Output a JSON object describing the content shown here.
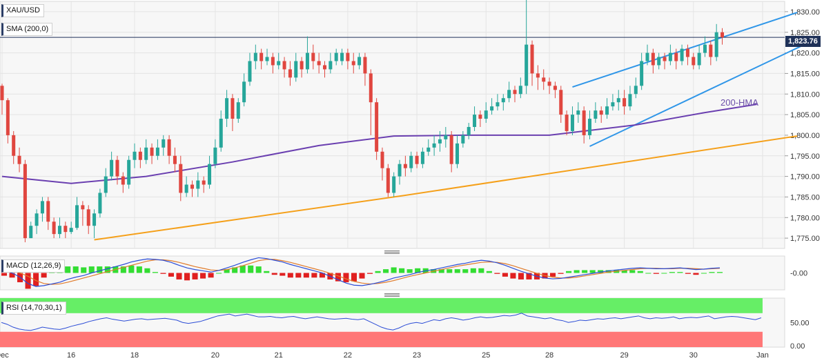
{
  "legend": {
    "symbol": "XAU/USD",
    "sma": "SMA (200,0)",
    "macd": "MACD (12,26,9)",
    "rsi": "RSI (14,70,30,1)"
  },
  "annotations": {
    "hma": "200-HMA",
    "last_price": "1,823.76"
  },
  "colors": {
    "bull": "#26a69a",
    "bear": "#e0463f",
    "hma": "#6a3fb0",
    "support": "#f5a01a",
    "channel": "#2f96e8",
    "last_price": "#1f3158",
    "macd_line": "#2b4cd6",
    "signal_line": "#e07b2a",
    "rsi_overbought": "#66ee66",
    "rsi_oversold": "#ff7777"
  },
  "chart_data": {
    "type": "candlestick",
    "price_axis": {
      "ticks": [
        "1,775.00",
        "1,780.00",
        "1,785.00",
        "1,790.00",
        "1,795.00",
        "1,800.00",
        "1,805.00",
        "1,810.00",
        "1,815.00",
        "1,820.00",
        "1,825.00",
        "1,830.00"
      ],
      "tick_values": [
        1775,
        1780,
        1785,
        1790,
        1795,
        1800,
        1805,
        1810,
        1815,
        1820,
        1825,
        1830
      ],
      "range": [
        1772.5,
        1832.5
      ]
    },
    "x_axis": {
      "labels": [
        "Dec",
        "16",
        "18",
        "20",
        "21",
        "22",
        "23",
        "25",
        "28",
        "29",
        "30",
        "Jan"
      ],
      "label_index": [
        0,
        12,
        23,
        37,
        48,
        60,
        72,
        84,
        95,
        108,
        120,
        132
      ]
    },
    "last_price": 1823.76,
    "hma_200": [
      [
        0,
        1790.0
      ],
      [
        12,
        1788.3
      ],
      [
        25,
        1790.0
      ],
      [
        40,
        1793.5
      ],
      [
        55,
        1797.5
      ],
      [
        68,
        1799.8
      ],
      [
        80,
        1800.0
      ],
      [
        95,
        1800.0
      ],
      [
        110,
        1802.5
      ],
      [
        122,
        1805.5
      ],
      [
        131,
        1807.5
      ]
    ],
    "support_line": [
      [
        16,
        1774.6
      ],
      [
        70,
        1785.4
      ],
      [
        138,
        1799.8
      ]
    ],
    "channel_upper": [
      [
        99,
        1811.7
      ],
      [
        138,
        1829.8
      ]
    ],
    "channel_lower": [
      [
        102,
        1797.3
      ],
      [
        140,
        1822.5
      ]
    ],
    "candles": [
      [
        1812,
        1808.5,
        1812.5,
        1805
      ],
      [
        1808.5,
        1800,
        1809,
        1798
      ],
      [
        1800,
        1795,
        1801,
        1793
      ],
      [
        1795,
        1793,
        1797,
        1791
      ],
      [
        1793,
        1775,
        1794,
        1774
      ],
      [
        1775,
        1778,
        1779,
        1775
      ],
      [
        1778,
        1781,
        1782,
        1776
      ],
      [
        1781,
        1784,
        1785,
        1779
      ],
      [
        1784,
        1779,
        1785,
        1777
      ],
      [
        1779,
        1776,
        1780,
        1775
      ],
      [
        1776,
        1778,
        1780,
        1775
      ],
      [
        1778,
        1776.5,
        1779,
        1775
      ],
      [
        1776.5,
        1777.5,
        1779,
        1776
      ],
      [
        1777.5,
        1783,
        1785,
        1777
      ],
      [
        1783,
        1782,
        1784,
        1778
      ],
      [
        1782,
        1778,
        1783,
        1776
      ],
      [
        1778,
        1781,
        1782,
        1775
      ],
      [
        1781,
        1786,
        1787,
        1780
      ],
      [
        1786,
        1790,
        1792,
        1785
      ],
      [
        1790,
        1794,
        1796,
        1789
      ],
      [
        1794,
        1790,
        1795,
        1788
      ],
      [
        1790,
        1788,
        1791,
        1786
      ],
      [
        1788,
        1794,
        1795,
        1787
      ],
      [
        1794,
        1796,
        1798,
        1792
      ],
      [
        1796,
        1794,
        1797,
        1792
      ],
      [
        1794,
        1797,
        1799,
        1793
      ],
      [
        1797,
        1795,
        1798,
        1793
      ],
      [
        1795,
        1797,
        1799,
        1794
      ],
      [
        1797,
        1799,
        1800,
        1795
      ],
      [
        1799,
        1795,
        1800,
        1793
      ],
      [
        1795,
        1793,
        1797,
        1791
      ],
      [
        1793,
        1786,
        1795,
        1784
      ],
      [
        1786,
        1788,
        1790,
        1785
      ],
      [
        1788,
        1787,
        1789,
        1785
      ],
      [
        1787,
        1789,
        1791,
        1785
      ],
      [
        1789,
        1788,
        1790,
        1786
      ],
      [
        1788,
        1793,
        1795,
        1787
      ],
      [
        1793,
        1797,
        1799,
        1792
      ],
      [
        1797,
        1804,
        1806,
        1796
      ],
      [
        1804,
        1809,
        1811,
        1802
      ],
      [
        1809,
        1804,
        1810,
        1801
      ],
      [
        1804,
        1808,
        1809,
        1803
      ],
      [
        1808,
        1813,
        1815,
        1807
      ],
      [
        1813,
        1818,
        1820,
        1812
      ],
      [
        1818,
        1820,
        1822,
        1816
      ],
      [
        1820,
        1818,
        1821,
        1816
      ],
      [
        1818,
        1819,
        1821,
        1817
      ],
      [
        1819,
        1817,
        1820,
        1815
      ],
      [
        1817,
        1818,
        1820,
        1816
      ],
      [
        1818,
        1816,
        1819,
        1814
      ],
      [
        1816,
        1814,
        1818,
        1812
      ],
      [
        1814,
        1818,
        1820,
        1813
      ],
      [
        1818,
        1816,
        1819,
        1814
      ],
      [
        1816,
        1820,
        1824,
        1815
      ],
      [
        1820,
        1818,
        1822,
        1816
      ],
      [
        1818,
        1817,
        1820,
        1815
      ],
      [
        1817,
        1816,
        1818,
        1814
      ],
      [
        1816,
        1818,
        1820,
        1815
      ],
      [
        1818,
        1820,
        1821,
        1817
      ],
      [
        1818,
        1820,
        1821,
        1817
      ],
      [
        1820,
        1818,
        1821,
        1816
      ],
      [
        1818,
        1817,
        1820,
        1815
      ],
      [
        1817,
        1819,
        1820,
        1816
      ],
      [
        1819,
        1815,
        1820,
        1812
      ],
      [
        1815,
        1808,
        1816,
        1800
      ],
      [
        1808,
        1796,
        1809,
        1794
      ],
      [
        1796,
        1792,
        1797,
        1789
      ],
      [
        1792,
        1786,
        1793,
        1785
      ],
      [
        1786,
        1790,
        1791,
        1785
      ],
      [
        1790,
        1793,
        1794,
        1788
      ],
      [
        1793,
        1792,
        1795,
        1790
      ],
      [
        1792,
        1795,
        1796,
        1791
      ],
      [
        1795,
        1793,
        1796,
        1792
      ],
      [
        1793,
        1796,
        1797,
        1792
      ],
      [
        1796,
        1797,
        1799,
        1795
      ],
      [
        1797,
        1798,
        1800,
        1795
      ],
      [
        1798,
        1799,
        1801,
        1796
      ],
      [
        1799,
        1800,
        1802,
        1797
      ],
      [
        1800,
        1793,
        1801,
        1791
      ],
      [
        1793,
        1798,
        1800,
        1792
      ],
      [
        1798,
        1800,
        1801,
        1797
      ],
      [
        1800,
        1802,
        1803,
        1799
      ],
      [
        1802,
        1805,
        1807,
        1801
      ],
      [
        1805,
        1804,
        1806,
        1802
      ],
      [
        1804,
        1806,
        1808,
        1803
      ],
      [
        1806,
        1807,
        1809,
        1805
      ],
      [
        1807,
        1808,
        1810,
        1806
      ],
      [
        1808,
        1809,
        1810,
        1806
      ],
      [
        1809,
        1811,
        1813,
        1808
      ],
      [
        1811,
        1810,
        1812,
        1808
      ],
      [
        1810,
        1812,
        1814,
        1809
      ],
      [
        1812,
        1822,
        1833,
        1810
      ],
      [
        1822,
        1815,
        1823,
        1812
      ],
      [
        1815,
        1814,
        1817,
        1811
      ],
      [
        1814,
        1813,
        1816,
        1811
      ],
      [
        1813,
        1812,
        1814,
        1810
      ],
      [
        1812,
        1811,
        1813,
        1809
      ],
      [
        1811,
        1805,
        1812,
        1803
      ],
      [
        1805,
        1801,
        1806,
        1800
      ],
      [
        1801,
        1805,
        1807,
        1800
      ],
      [
        1805,
        1806,
        1808,
        1803
      ],
      [
        1806,
        1800,
        1807,
        1798
      ],
      [
        1800,
        1804,
        1806,
        1799
      ],
      [
        1804,
        1806,
        1808,
        1803
      ],
      [
        1806,
        1805,
        1807,
        1803
      ],
      [
        1805,
        1807,
        1809,
        1804
      ],
      [
        1807,
        1808,
        1810,
        1806
      ],
      [
        1808,
        1809,
        1811,
        1806
      ],
      [
        1809,
        1807,
        1811,
        1805
      ],
      [
        1807,
        1810,
        1812,
        1806
      ],
      [
        1810,
        1812,
        1814,
        1809
      ],
      [
        1812,
        1818,
        1820,
        1811
      ],
      [
        1818,
        1820,
        1822,
        1817
      ],
      [
        1820,
        1817,
        1821,
        1815
      ],
      [
        1817,
        1819,
        1820,
        1816
      ],
      [
        1819,
        1818,
        1820,
        1816
      ],
      [
        1818,
        1820,
        1822,
        1817
      ],
      [
        1820,
        1818,
        1821,
        1816
      ],
      [
        1818,
        1821,
        1822,
        1817
      ],
      [
        1821,
        1819,
        1822,
        1817
      ],
      [
        1819,
        1817,
        1820,
        1816
      ],
      [
        1817,
        1820,
        1822,
        1816
      ],
      [
        1820,
        1822,
        1824,
        1819
      ],
      [
        1822,
        1819,
        1823,
        1817
      ],
      [
        1819,
        1825,
        1827,
        1818
      ],
      [
        1825,
        1823.76,
        1826,
        1822
      ]
    ]
  },
  "macd_data": {
    "tick": "-0.00",
    "range": [
      -4,
      4
    ],
    "macd": [
      0.5,
      0.0,
      -1.0,
      -2.5,
      -3.2,
      -3.0,
      -2.6,
      -2.2,
      -1.5,
      -1.0,
      -0.6,
      0.0,
      0.5,
      1.0,
      1.5,
      2.0,
      2.6,
      3.0,
      3.3,
      3.2,
      3.0,
      2.5,
      1.8,
      1.2,
      0.8,
      0.5,
      0.2,
      0.6,
      1.2,
      1.8,
      2.5,
      3.1,
      3.6,
      3.4,
      3.0,
      2.6,
      2.0,
      1.5,
      1.0,
      0.5,
      0.0,
      -0.8,
      -1.6,
      -2.4,
      -2.9,
      -3.0,
      -2.7,
      -2.3,
      -1.8,
      -1.2,
      -0.8,
      -0.4,
      0.1,
      0.5,
      0.8,
      1.2,
      1.6,
      2.0,
      2.3,
      2.7,
      3.0,
      2.8,
      2.4,
      1.8,
      1.1,
      0.4,
      -0.2,
      -0.8,
      -1.2,
      -1.4,
      -1.3,
      -1.0,
      -0.7,
      -0.4,
      -0.1,
      0.2,
      0.5,
      0.7,
      0.9,
      1.1,
      1.2,
      1.1,
      1.0,
      1.0,
      1.1,
      1.2,
      1.0,
      0.8,
      0.9,
      1.1,
      1.2
    ],
    "signal": [
      0.8,
      0.5,
      0.0,
      -0.8,
      -1.8,
      -2.5,
      -2.7,
      -2.6,
      -2.2,
      -1.7,
      -1.2,
      -0.7,
      -0.2,
      0.3,
      0.8,
      1.3,
      1.8,
      2.3,
      2.8,
      3.1,
      3.1,
      2.9,
      2.5,
      2.0,
      1.5,
      1.1,
      0.7,
      0.6,
      0.8,
      1.2,
      1.7,
      2.3,
      2.9,
      3.2,
      3.2,
      2.9,
      2.5,
      2.0,
      1.5,
      1.0,
      0.5,
      -0.1,
      -0.7,
      -1.4,
      -2.0,
      -2.4,
      -2.6,
      -2.5,
      -2.2,
      -1.8,
      -1.3,
      -0.8,
      -0.4,
      0.0,
      0.4,
      0.8,
      1.2,
      1.6,
      1.9,
      2.2,
      2.5,
      2.6,
      2.5,
      2.2,
      1.7,
      1.1,
      0.5,
      -0.1,
      -0.6,
      -1.0,
      -1.2,
      -1.2,
      -1.0,
      -0.7,
      -0.4,
      -0.1,
      0.2,
      0.4,
      0.6,
      0.8,
      1.0,
      1.1,
      1.1,
      1.0,
      1.0,
      1.1,
      1.1,
      1.0,
      0.9,
      1.0,
      1.1
    ]
  },
  "rsi_data": {
    "ticks": [
      "50.00",
      "0.00"
    ],
    "tick_values": [
      50,
      0
    ],
    "overbought": 70,
    "oversold": 30,
    "values": [
      50,
      46,
      40,
      36,
      34,
      33,
      36,
      40,
      38,
      36,
      35,
      38,
      42,
      45,
      48,
      52,
      55,
      58,
      60,
      57,
      55,
      53,
      55,
      57,
      58,
      56,
      57,
      58,
      59,
      57,
      55,
      50,
      48,
      50,
      52,
      56,
      60,
      64,
      66,
      68,
      64,
      66,
      68,
      65,
      62,
      62,
      63,
      61,
      60,
      62,
      63,
      60,
      58,
      60,
      62,
      60,
      58,
      57,
      58,
      59,
      57,
      56,
      58,
      52,
      46,
      40,
      36,
      34,
      38,
      44,
      48,
      50,
      48,
      52,
      56,
      54,
      58,
      60,
      58,
      55,
      57,
      60,
      62,
      60,
      61,
      63,
      65,
      64,
      66,
      70,
      64,
      62,
      60,
      58,
      60,
      56,
      54,
      50,
      52,
      55,
      54,
      56,
      58,
      57,
      59,
      60,
      58,
      60,
      62,
      64,
      60,
      58,
      60,
      59,
      60,
      62,
      58,
      60,
      61,
      60,
      62,
      64,
      58,
      60,
      62,
      63,
      62,
      60,
      58,
      56,
      60
    ]
  }
}
